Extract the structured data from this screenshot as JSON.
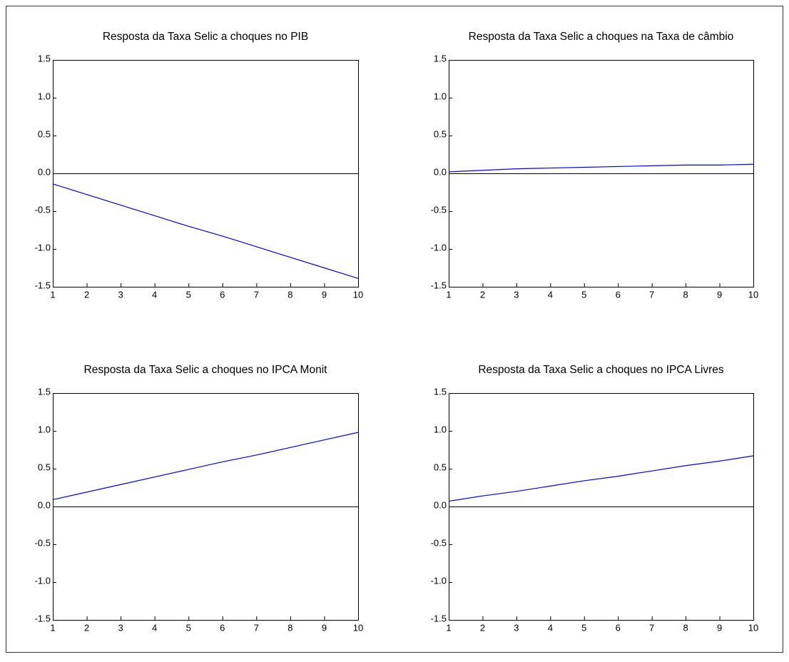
{
  "chart_data": [
    {
      "type": "line",
      "title": "Resposta da Taxa Selic a choques no PIB",
      "x": [
        1,
        2,
        3,
        4,
        5,
        6,
        7,
        8,
        9,
        10
      ],
      "values": [
        -0.14,
        -0.28,
        -0.42,
        -0.56,
        -0.7,
        -0.83,
        -0.97,
        -1.11,
        -1.25,
        -1.39
      ],
      "color": "#0000ff",
      "xlim": [
        1,
        10
      ],
      "ylim": [
        -1.5,
        1.5
      ],
      "xticks": [
        1,
        2,
        3,
        4,
        5,
        6,
        7,
        8,
        9,
        10
      ],
      "yticks": [
        -1.5,
        {
          "value": -1,
          "label": "-1.0"
        },
        -0.5,
        {
          "value": 0,
          "label": "0.0"
        },
        0.5,
        {
          "value": 1,
          "label": "1.0"
        },
        1.5
      ]
    },
    {
      "type": "line",
      "title": "Resposta da Taxa Selic a choques na Taxa de câmbio",
      "x": [
        1,
        2,
        3,
        4,
        5,
        6,
        7,
        8,
        9,
        10
      ],
      "values": [
        0.02,
        0.04,
        0.06,
        0.07,
        0.08,
        0.09,
        0.1,
        0.11,
        0.11,
        0.12
      ],
      "color": "#0000ff",
      "xlim": [
        1,
        10
      ],
      "ylim": [
        -1.5,
        1.5
      ],
      "xticks": [
        1,
        2,
        3,
        4,
        5,
        6,
        7,
        8,
        9,
        10
      ],
      "yticks": [
        -1.5,
        {
          "value": -1,
          "label": "-1.0"
        },
        -0.5,
        {
          "value": 0,
          "label": "0.0"
        },
        0.5,
        {
          "value": 1,
          "label": "1.0"
        },
        1.5
      ]
    },
    {
      "type": "line",
      "title": "Resposta da Taxa Selic a choques no IPCA Monit",
      "x": [
        1,
        2,
        3,
        4,
        5,
        6,
        7,
        8,
        9,
        10
      ],
      "values": [
        0.09,
        0.19,
        0.29,
        0.39,
        0.49,
        0.59,
        0.68,
        0.78,
        0.88,
        0.98
      ],
      "color": "#0000ff",
      "xlim": [
        1,
        10
      ],
      "ylim": [
        -1.5,
        1.5
      ],
      "xticks": [
        1,
        2,
        3,
        4,
        5,
        6,
        7,
        8,
        9,
        10
      ],
      "yticks": [
        -1.5,
        {
          "value": -1,
          "label": "-1.0"
        },
        -0.5,
        {
          "value": 0,
          "label": "0.0"
        },
        0.5,
        {
          "value": 1,
          "label": "1.0"
        },
        1.5
      ]
    },
    {
      "type": "line",
      "title": "Resposta da Taxa Selic a choques no IPCA Livres",
      "x": [
        1,
        2,
        3,
        4,
        5,
        6,
        7,
        8,
        9,
        10
      ],
      "values": [
        0.07,
        0.14,
        0.2,
        0.27,
        0.34,
        0.4,
        0.47,
        0.54,
        0.6,
        0.67
      ],
      "color": "#0000ff",
      "xlim": [
        1,
        10
      ],
      "ylim": [
        -1.5,
        1.5
      ],
      "xticks": [
        1,
        2,
        3,
        4,
        5,
        6,
        7,
        8,
        9,
        10
      ],
      "yticks": [
        -1.5,
        {
          "value": -1,
          "label": "-1.0"
        },
        -0.5,
        {
          "value": 0,
          "label": "0.0"
        },
        0.5,
        {
          "value": 1,
          "label": "1.0"
        },
        1.5
      ]
    }
  ]
}
